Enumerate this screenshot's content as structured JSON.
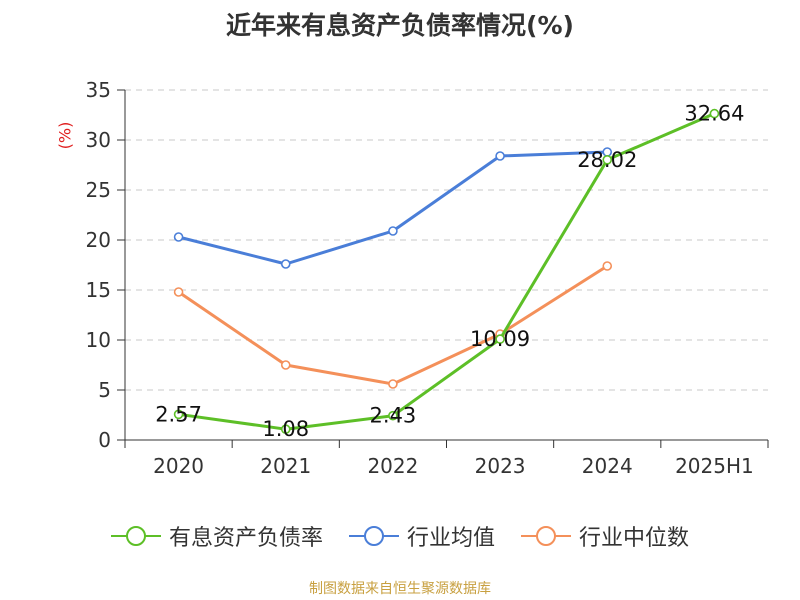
{
  "chart_data": {
    "type": "line",
    "title": "近年来有息资产负债率情况(%)",
    "ylabel": "(%)",
    "xlabel": "",
    "categories": [
      "2020",
      "2021",
      "2022",
      "2023",
      "2024",
      "2025H1"
    ],
    "ylim": [
      0,
      35
    ],
    "yticks": [
      0,
      5,
      10,
      15,
      20,
      25,
      30,
      35
    ],
    "grid": true,
    "legend_position": "bottom",
    "series": [
      {
        "name": "有息资产负债率",
        "color": "#5dbf27",
        "values": [
          2.57,
          1.08,
          2.43,
          10.09,
          28.02,
          32.64
        ],
        "labels": [
          "2.57",
          "1.08",
          "2.43",
          "10.09",
          "28.02",
          "32.64"
        ]
      },
      {
        "name": "行业均值",
        "color": "#4a7ed8",
        "values": [
          20.3,
          17.6,
          20.9,
          28.4,
          28.8,
          null
        ]
      },
      {
        "name": "行业中位数",
        "color": "#f4905a",
        "values": [
          14.8,
          7.5,
          5.6,
          10.6,
          17.4,
          null
        ]
      }
    ]
  },
  "footer": {
    "source": "制图数据来自恒生聚源数据库"
  }
}
